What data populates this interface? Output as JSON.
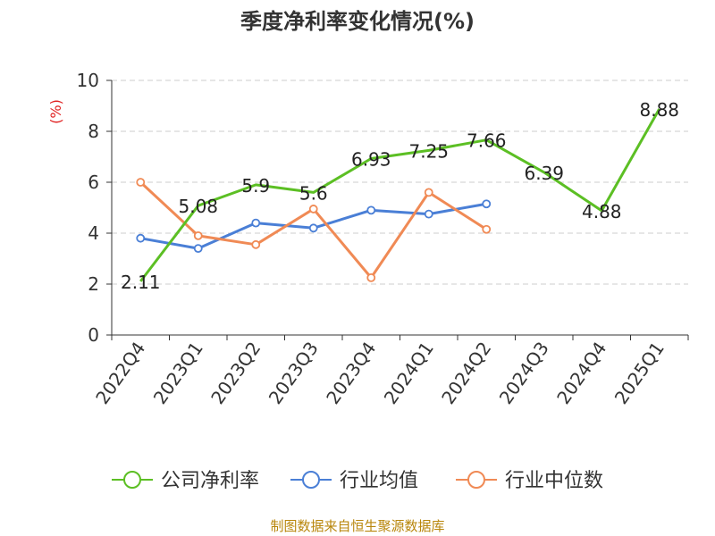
{
  "chart_data": {
    "type": "line",
    "title": "季度净利率变化情况(%)",
    "ylabel": "(%)",
    "ylim": [
      0,
      10
    ],
    "yticks": [
      0,
      2,
      4,
      6,
      8,
      10
    ],
    "grid": true,
    "legend_position": "bottom",
    "categories": [
      "2022Q4",
      "2023Q1",
      "2023Q2",
      "2023Q3",
      "2023Q4",
      "2024Q1",
      "2024Q2",
      "2024Q3",
      "2024Q4",
      "2025Q1"
    ],
    "series": [
      {
        "name": "公司净利率",
        "color": "#5cbf24",
        "values": [
          2.11,
          5.08,
          5.9,
          5.6,
          6.93,
          7.25,
          7.66,
          6.39,
          4.88,
          8.88
        ],
        "labels": [
          "2.11",
          "5.08",
          "5.9",
          "5.6",
          "6.93",
          "7.25",
          "7.66",
          "6.39",
          "4.88",
          "8.88"
        ]
      },
      {
        "name": "行业均值",
        "color": "#4a7fd6",
        "values": [
          3.8,
          3.4,
          4.4,
          4.2,
          4.9,
          4.75,
          5.15,
          null,
          null,
          null
        ]
      },
      {
        "name": "行业中位数",
        "color": "#f08a55",
        "values": [
          6.0,
          3.9,
          3.55,
          4.95,
          2.25,
          5.6,
          4.15,
          null,
          null,
          null
        ]
      }
    ],
    "source": "制图数据来自恒生聚源数据库"
  }
}
